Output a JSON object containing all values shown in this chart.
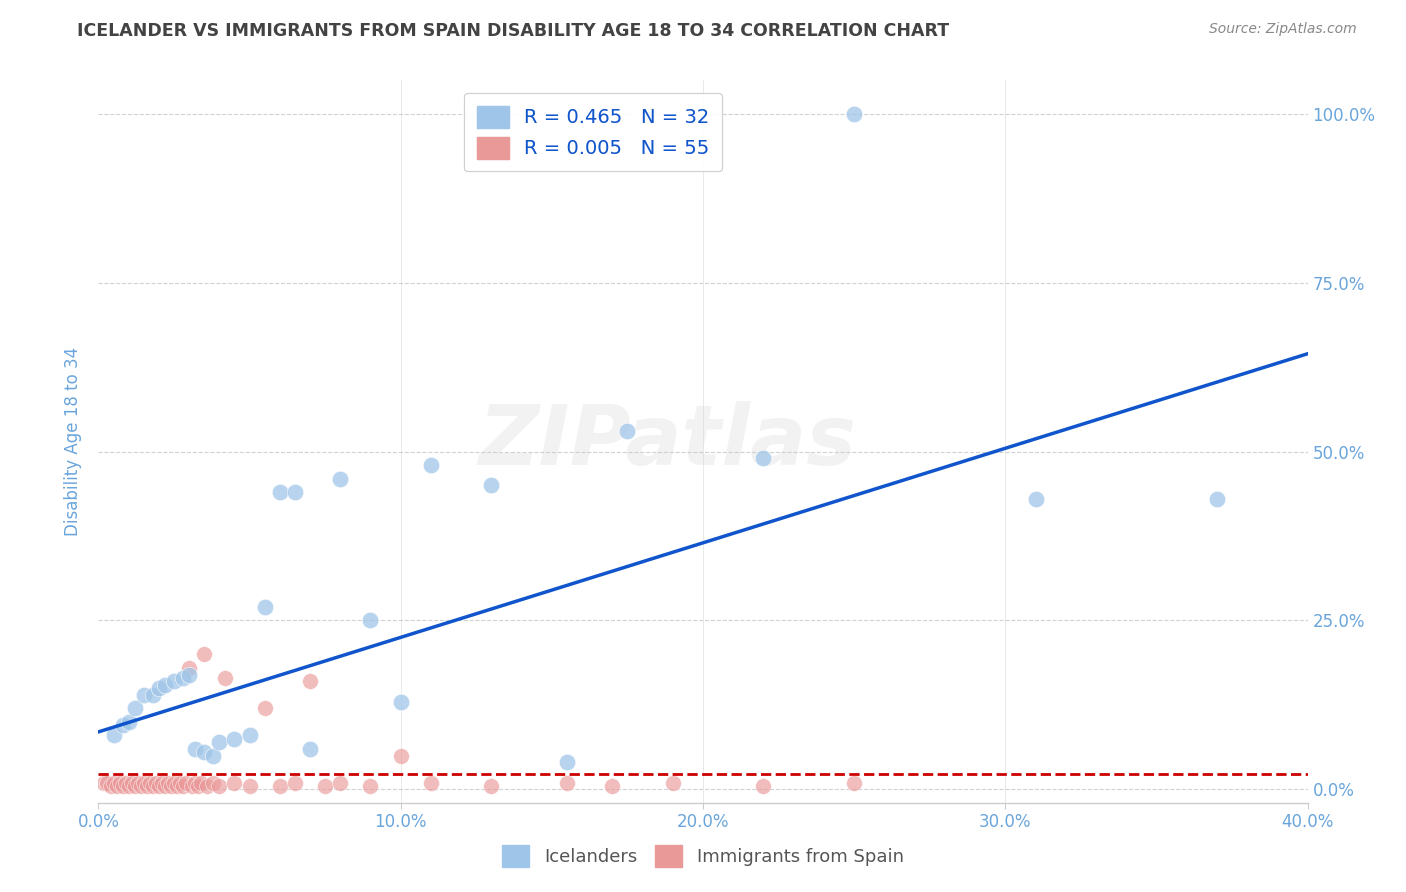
{
  "title": "ICELANDER VS IMMIGRANTS FROM SPAIN DISABILITY AGE 18 TO 34 CORRELATION CHART",
  "source": "Source: ZipAtlas.com",
  "ylabel": "Disability Age 18 to 34",
  "xlim": [
    0.0,
    0.4
  ],
  "ylim": [
    -0.02,
    1.05
  ],
  "yticks": [
    0.0,
    0.25,
    0.5,
    0.75,
    1.0
  ],
  "ytick_labels": [
    "0.0%",
    "25.0%",
    "50.0%",
    "75.0%",
    "100.0%"
  ],
  "xticks": [
    0.0,
    0.1,
    0.2,
    0.3,
    0.4
  ],
  "xtick_labels": [
    "0.0%",
    "10.0%",
    "20.0%",
    "30.0%",
    "40.0%"
  ],
  "blue_color": "#9fc5e8",
  "pink_color": "#ea9999",
  "blue_line_color": "#1155cc",
  "pink_line_color": "#cc0000",
  "legend_blue_R": "R = 0.465",
  "legend_blue_N": "N = 32",
  "legend_pink_R": "R = 0.005",
  "legend_pink_N": "N = 55",
  "watermark": "ZIPatlas",
  "blue_scatter_x": [
    0.005,
    0.008,
    0.01,
    0.012,
    0.015,
    0.018,
    0.02,
    0.022,
    0.025,
    0.028,
    0.03,
    0.032,
    0.035,
    0.038,
    0.04,
    0.045,
    0.05,
    0.055,
    0.06,
    0.065,
    0.07,
    0.08,
    0.09,
    0.1,
    0.11,
    0.13,
    0.155,
    0.175,
    0.22,
    0.25,
    0.31,
    0.37
  ],
  "blue_scatter_y": [
    0.08,
    0.095,
    0.1,
    0.12,
    0.14,
    0.14,
    0.15,
    0.155,
    0.16,
    0.165,
    0.17,
    0.06,
    0.055,
    0.05,
    0.07,
    0.075,
    0.08,
    0.27,
    0.44,
    0.44,
    0.06,
    0.46,
    0.25,
    0.13,
    0.48,
    0.45,
    0.04,
    0.53,
    0.49,
    1.0,
    0.43,
    0.43
  ],
  "pink_scatter_x": [
    0.002,
    0.003,
    0.004,
    0.005,
    0.006,
    0.007,
    0.008,
    0.009,
    0.01,
    0.011,
    0.012,
    0.013,
    0.014,
    0.015,
    0.016,
    0.017,
    0.018,
    0.019,
    0.02,
    0.021,
    0.022,
    0.023,
    0.024,
    0.025,
    0.026,
    0.027,
    0.028,
    0.029,
    0.03,
    0.031,
    0.032,
    0.033,
    0.034,
    0.035,
    0.036,
    0.038,
    0.04,
    0.042,
    0.045,
    0.05,
    0.055,
    0.06,
    0.065,
    0.07,
    0.075,
    0.08,
    0.09,
    0.1,
    0.11,
    0.13,
    0.155,
    0.17,
    0.19,
    0.22,
    0.25
  ],
  "pink_scatter_y": [
    0.01,
    0.01,
    0.005,
    0.01,
    0.005,
    0.01,
    0.005,
    0.01,
    0.005,
    0.01,
    0.005,
    0.01,
    0.005,
    0.01,
    0.005,
    0.01,
    0.005,
    0.01,
    0.005,
    0.01,
    0.005,
    0.01,
    0.005,
    0.01,
    0.005,
    0.01,
    0.005,
    0.01,
    0.18,
    0.005,
    0.01,
    0.005,
    0.01,
    0.2,
    0.005,
    0.01,
    0.005,
    0.165,
    0.01,
    0.005,
    0.12,
    0.005,
    0.01,
    0.16,
    0.005,
    0.01,
    0.005,
    0.05,
    0.01,
    0.005,
    0.01,
    0.005,
    0.01,
    0.005,
    0.01
  ],
  "blue_trend_x": [
    0.0,
    0.4
  ],
  "blue_trend_y": [
    0.085,
    0.645
  ],
  "pink_trend_x": [
    0.0,
    0.4
  ],
  "pink_trend_y": [
    0.022,
    0.022
  ],
  "grid_color": "#cccccc",
  "title_color": "#434343",
  "axis_label_color": "#6aa5db",
  "tick_label_color": "#6aa5db",
  "source_color": "#888888"
}
